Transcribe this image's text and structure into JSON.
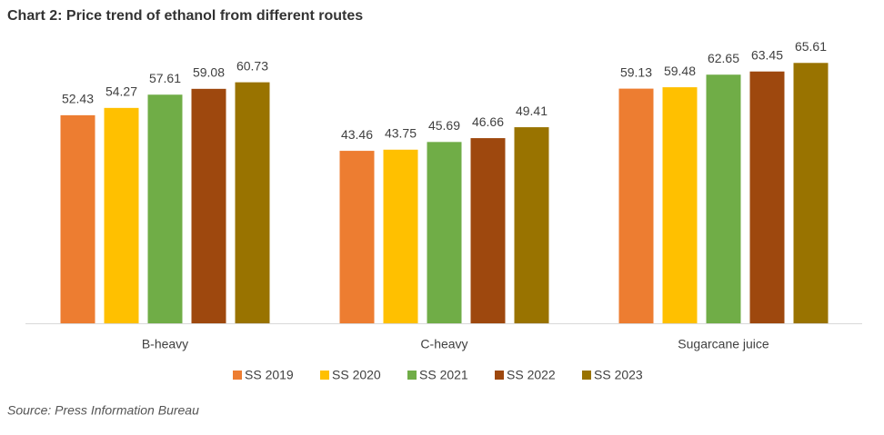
{
  "chart_data": {
    "type": "bar",
    "title": "Chart 2: Price trend of ethanol from different routes",
    "source": "Source: Press Information Bureau",
    "categories": [
      "B-heavy",
      "C-heavy",
      "Sugarcane juice"
    ],
    "series": [
      {
        "name": "SS 2019",
        "color": "#ed7d31",
        "values": [
          52.43,
          43.46,
          59.13
        ]
      },
      {
        "name": "SS 2020",
        "color": "#ffc000",
        "values": [
          54.27,
          43.75,
          59.48
        ]
      },
      {
        "name": "SS 2021",
        "color": "#70ad47",
        "values": [
          57.61,
          45.69,
          62.65
        ]
      },
      {
        "name": "SS 2022",
        "color": "#9e480e",
        "values": [
          59.08,
          46.66,
          63.45
        ]
      },
      {
        "name": "SS 2023",
        "color": "#997300",
        "values": [
          60.73,
          49.41,
          65.61
        ]
      }
    ]
  }
}
